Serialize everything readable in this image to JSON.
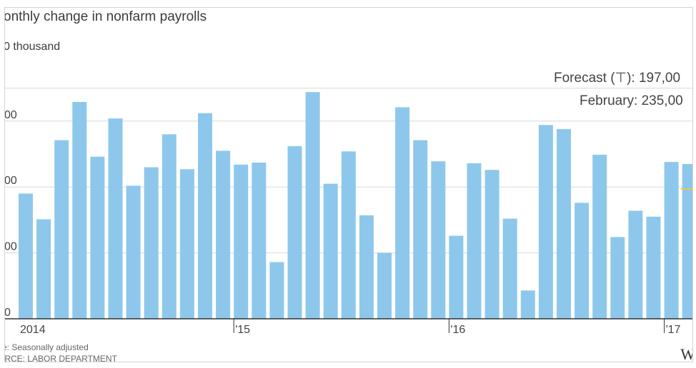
{
  "title": "onthly change in nonfarm payrolls",
  "unit_label": "0 thousand",
  "annotations": {
    "forecast": "Forecast (⊤): 197,00",
    "actual": "February: 235,00"
  },
  "notes": {
    "seasonal": "e: Seasonally adjusted",
    "source": "IRCE: LABOR DEPARTMENT"
  },
  "logo_text": "W",
  "colors": {
    "bar": "#8dc8ec",
    "gridline": "#d8d8d8",
    "baseline": "#333333",
    "forecast_marker": "#e8c94a"
  },
  "chart_data": {
    "type": "bar",
    "title": "onthly change in nonfarm payrolls",
    "unit": "0 thousand",
    "ylim": [
      0,
      350
    ],
    "y_ticks": [
      {
        "value": 0,
        "label": "0"
      },
      {
        "value": 100,
        "label": "00"
      },
      {
        "value": 200,
        "label": "00"
      },
      {
        "value": 300,
        "label": "00"
      }
    ],
    "x_ticks": [
      {
        "index": 0,
        "label": "2014"
      },
      {
        "index": 12,
        "label": "'15"
      },
      {
        "index": 24,
        "label": "'16"
      },
      {
        "index": 36,
        "label": "'17"
      }
    ],
    "categories": [
      "2014-01",
      "2014-02",
      "2014-03",
      "2014-04",
      "2014-05",
      "2014-06",
      "2014-07",
      "2014-08",
      "2014-09",
      "2014-10",
      "2014-11",
      "2014-12",
      "2015-01",
      "2015-02",
      "2015-03",
      "2015-04",
      "2015-05",
      "2015-06",
      "2015-07",
      "2015-08",
      "2015-09",
      "2015-10",
      "2015-11",
      "2015-12",
      "2016-01",
      "2016-02",
      "2016-03",
      "2016-04",
      "2016-05",
      "2016-06",
      "2016-07",
      "2016-08",
      "2016-09",
      "2016-10",
      "2016-11",
      "2016-12",
      "2017-01",
      "2017-02"
    ],
    "values": [
      190,
      151,
      271,
      329,
      246,
      304,
      202,
      230,
      280,
      227,
      312,
      255,
      234,
      237,
      86,
      262,
      344,
      205,
      254,
      157,
      100,
      321,
      271,
      239,
      126,
      236,
      226,
      152,
      43,
      294,
      288,
      176,
      249,
      124,
      164,
      155,
      238,
      235
    ],
    "forecast": {
      "category": "2017-02",
      "value": 197
    },
    "grid": true
  }
}
